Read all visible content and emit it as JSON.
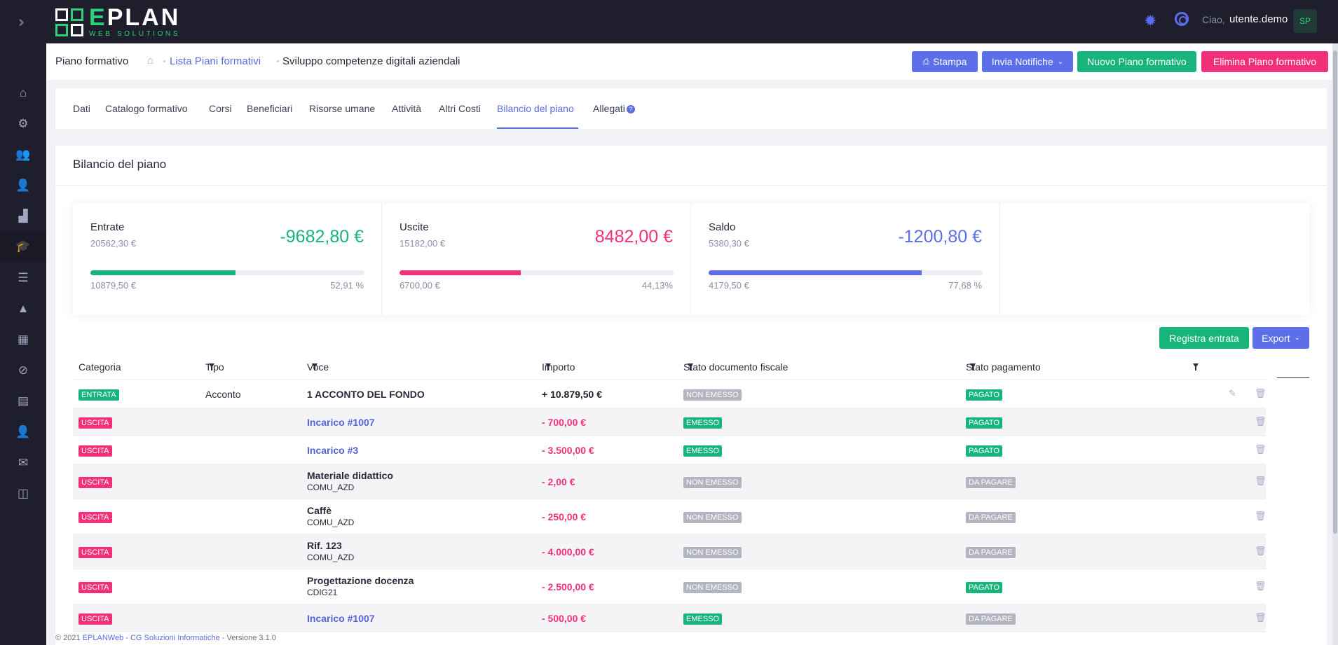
{
  "topbar": {
    "logo_name_green": "E",
    "logo_name_rest": "PLAN",
    "logo_sub": "WEB SOLUTIONS",
    "hello": "Ciao,",
    "user": "utente.demo",
    "avatar": "SP"
  },
  "sidebar": {
    "items": [
      {
        "icon": "home-icon"
      },
      {
        "icon": "gear-icon"
      },
      {
        "icon": "users-icon"
      },
      {
        "icon": "user-icon"
      },
      {
        "icon": "chart-icon"
      },
      {
        "icon": "graduation-cap-icon",
        "active": true
      },
      {
        "icon": "server-icon"
      },
      {
        "icon": "warning-icon"
      },
      {
        "icon": "calendar-icon"
      },
      {
        "icon": "paperclip-icon"
      },
      {
        "icon": "archive-icon"
      },
      {
        "icon": "user-lock-icon"
      },
      {
        "icon": "envelope-icon"
      },
      {
        "icon": "analytics-icon"
      }
    ]
  },
  "header": {
    "title": "Piano formativo",
    "crumb_link": "Lista Piani formativi",
    "crumb_current": "Sviluppo competenze digitali aziendali",
    "btn_print": "Stampa",
    "btn_notify": "Invia Notifiche",
    "btn_new": "Nuovo Piano formativo",
    "btn_delete": "Elimina Piano formativo"
  },
  "tabs": [
    "Dati",
    "Catalogo formativo",
    "Corsi",
    "Beneficiari",
    "Risorse umane",
    "Attività",
    "Altri Costi",
    "Bilancio del piano",
    "Allegati"
  ],
  "tabs_active": "Bilancio del piano",
  "card": {
    "title": "Bilancio del piano"
  },
  "summary": {
    "entrate": {
      "label": "Entrate",
      "sub": "20562,30 €",
      "big": "-9682,80 €",
      "foot_left": "10879,50 €",
      "foot_right": "52,91 %",
      "progress": 0.5291,
      "color": "#17b47c"
    },
    "uscite": {
      "label": "Uscite",
      "sub": "15182,00 €",
      "big": "8482,00 €",
      "foot_left": "6700,00 €",
      "foot_right": "44,13%",
      "progress": 0.4413,
      "color": "#f2307a"
    },
    "saldo": {
      "label": "Saldo",
      "sub": "5380,30 €",
      "big": "-1200,80 €",
      "foot_left": "4179,50 €",
      "foot_right": "77,68 %",
      "progress": 0.7768,
      "color": "#5c6ee8"
    }
  },
  "actions": {
    "register": "Registra entrata",
    "export": "Export"
  },
  "table": {
    "headers": [
      "Categoria",
      "Tipo",
      "Voce",
      "Importo",
      "Stato documento fiscale",
      "Stato pagamento"
    ],
    "rows": [
      {
        "categoria": "ENTRATA",
        "tipo": "Acconto",
        "voce": "1 ACCONTO DEL FONDO",
        "codice": "",
        "importo": "+ 10.879,50 €",
        "doc": "NON EMESSO",
        "pag": "PAGATO"
      },
      {
        "categoria": "USCITA",
        "tipo": "",
        "voce": "Incarico #1007",
        "codice": "",
        "importo": "- 700,00 €",
        "doc": "EMESSO",
        "pag": "PAGATO"
      },
      {
        "categoria": "USCITA",
        "tipo": "",
        "voce": "Incarico #3",
        "codice": "",
        "importo": "- 3.500,00 €",
        "doc": "EMESSO",
        "pag": "PAGATO"
      },
      {
        "categoria": "USCITA",
        "tipo": "",
        "voce": "Materiale didattico",
        "codice": "COMU_AZD",
        "importo": "- 2,00 €",
        "doc": "NON EMESSO",
        "pag": "DA PAGARE"
      },
      {
        "categoria": "USCITA",
        "tipo": "",
        "voce": "Caffè",
        "codice": "COMU_AZD",
        "importo": "- 250,00 €",
        "doc": "NON EMESSO",
        "pag": "DA PAGARE"
      },
      {
        "categoria": "USCITA",
        "tipo": "",
        "voce": "Rif. 123",
        "codice": "COMU_AZD",
        "importo": "- 4.000,00 €",
        "doc": "NON EMESSO",
        "pag": "DA PAGARE"
      },
      {
        "categoria": "USCITA",
        "tipo": "",
        "voce": "Progettazione docenza",
        "codice": "CDIG21",
        "importo": "- 2.500,00 €",
        "doc": "NON EMESSO",
        "pag": "PAGATO"
      },
      {
        "categoria": "USCITA",
        "tipo": "",
        "voce": "Incarico #1007",
        "codice": "",
        "importo": "- 500,00 €",
        "doc": "EMESSO",
        "pag": "DA PAGARE"
      }
    ]
  },
  "footer": {
    "prefix": "© 2021",
    "link": "EPLANWeb - CG Soluzioni Informatiche",
    "suffix": "- Versione 3.1.0"
  }
}
